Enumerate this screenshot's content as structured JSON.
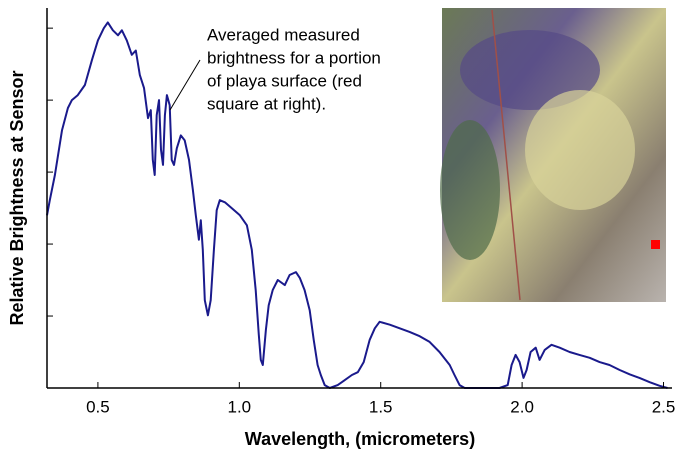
{
  "chart_data": {
    "type": "line",
    "xlabel": "Wavelength, (micrometers)",
    "ylabel": "Relative Brightness at Sensor",
    "annotation": [
      "Averaged measured",
      "brightness for a portion",
      "of playa surface (red",
      "square at right)."
    ],
    "xlim": [
      0.32,
      2.53
    ],
    "xticks": [
      {
        "value": 0.5,
        "label": "0.5"
      },
      {
        "value": 1.0,
        "label": "1.0"
      },
      {
        "value": 1.5,
        "label": "1.5"
      },
      {
        "value": 2.0,
        "label": "2.0"
      },
      {
        "value": 2.5,
        "label": "2.5"
      }
    ],
    "ylim": [
      0,
      5.28
    ],
    "yticks": [
      1,
      2,
      3,
      4,
      5
    ],
    "x": [
      0.32,
      0.33,
      0.348,
      0.373,
      0.394,
      0.408,
      0.429,
      0.454,
      0.479,
      0.5,
      0.521,
      0.535,
      0.553,
      0.571,
      0.585,
      0.602,
      0.62,
      0.634,
      0.648,
      0.663,
      0.677,
      0.687,
      0.694,
      0.701,
      0.708,
      0.716,
      0.723,
      0.73,
      0.737,
      0.744,
      0.754,
      0.761,
      0.769,
      0.779,
      0.793,
      0.807,
      0.822,
      0.836,
      0.846,
      0.857,
      0.864,
      0.871,
      0.878,
      0.889,
      0.899,
      0.91,
      0.92,
      0.931,
      0.949,
      0.973,
      1.002,
      1.027,
      1.044,
      1.058,
      1.069,
      1.076,
      1.083,
      1.094,
      1.104,
      1.118,
      1.136,
      1.161,
      1.178,
      1.2,
      1.214,
      1.231,
      1.249,
      1.263,
      1.277,
      1.288,
      1.302,
      1.32,
      1.348,
      1.373,
      1.398,
      1.419,
      1.44,
      1.461,
      1.479,
      1.496,
      1.532,
      1.567,
      1.602,
      1.638,
      1.673,
      1.708,
      1.744,
      1.761,
      1.779,
      1.797,
      1.85,
      1.92,
      1.949,
      1.963,
      1.977,
      1.991,
      2.005,
      2.016,
      2.03,
      2.048,
      2.062,
      2.08,
      2.104,
      2.133,
      2.168,
      2.203,
      2.239,
      2.274,
      2.309,
      2.345,
      2.38,
      2.415,
      2.451,
      2.486,
      2.514
    ],
    "series": [
      {
        "color": "#1a1a8c",
        "values": [
          2.4,
          2.61,
          2.96,
          3.58,
          3.89,
          4.0,
          4.07,
          4.21,
          4.56,
          4.83,
          5.0,
          5.08,
          4.97,
          4.9,
          4.97,
          4.83,
          4.63,
          4.69,
          4.35,
          4.17,
          3.75,
          3.86,
          3.17,
          2.96,
          3.79,
          4.0,
          3.31,
          3.1,
          3.79,
          4.07,
          3.93,
          3.17,
          3.1,
          3.33,
          3.51,
          3.44,
          3.17,
          2.75,
          2.4,
          2.06,
          2.33,
          1.92,
          1.22,
          1.01,
          1.22,
          1.92,
          2.47,
          2.61,
          2.58,
          2.5,
          2.4,
          2.26,
          1.92,
          1.36,
          0.74,
          0.39,
          0.32,
          0.81,
          1.15,
          1.36,
          1.5,
          1.43,
          1.57,
          1.61,
          1.53,
          1.36,
          1.08,
          0.67,
          0.32,
          0.18,
          0.04,
          0,
          0.04,
          0.11,
          0.18,
          0.22,
          0.36,
          0.67,
          0.83,
          0.92,
          0.88,
          0.83,
          0.78,
          0.72,
          0.64,
          0.5,
          0.32,
          0.18,
          0.04,
          0,
          0,
          0,
          0.04,
          0.32,
          0.46,
          0.36,
          0.14,
          0.25,
          0.5,
          0.56,
          0.39,
          0.53,
          0.6,
          0.56,
          0.5,
          0.46,
          0.42,
          0.36,
          0.32,
          0.25,
          0.19,
          0.14,
          0.08,
          0.03,
          0
        ]
      }
    ]
  }
}
